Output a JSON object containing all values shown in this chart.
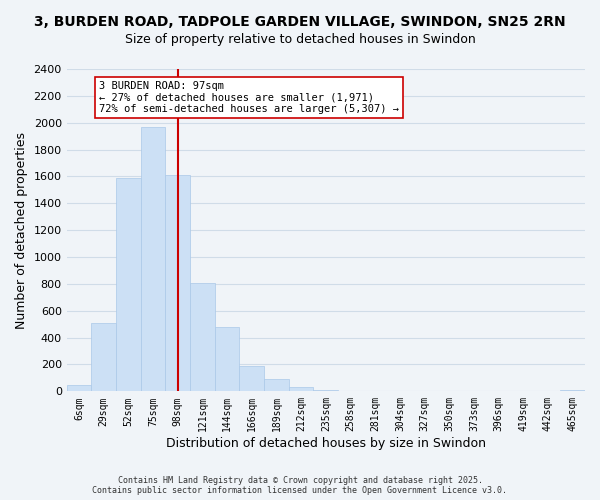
{
  "title": "3, BURDEN ROAD, TADPOLE GARDEN VILLAGE, SWINDON, SN25 2RN",
  "subtitle": "Size of property relative to detached houses in Swindon",
  "xlabel": "Distribution of detached houses by size in Swindon",
  "ylabel": "Number of detached properties",
  "bin_labels": [
    "6sqm",
    "29sqm",
    "52sqm",
    "75sqm",
    "98sqm",
    "121sqm",
    "144sqm",
    "166sqm",
    "189sqm",
    "212sqm",
    "235sqm",
    "258sqm",
    "281sqm",
    "304sqm",
    "327sqm",
    "350sqm",
    "373sqm",
    "396sqm",
    "419sqm",
    "442sqm",
    "465sqm"
  ],
  "bar_values": [
    50,
    510,
    1590,
    1970,
    1610,
    810,
    480,
    190,
    90,
    35,
    10,
    5,
    2,
    1,
    0,
    0,
    0,
    0,
    0,
    0,
    10
  ],
  "bar_color": "#cce0f5",
  "bar_edge_color": "#aac8e8",
  "vline_x": 4,
  "vline_color": "#cc0000",
  "annotation_title": "3 BURDEN ROAD: 97sqm",
  "annotation_line1": "← 27% of detached houses are smaller (1,971)",
  "annotation_line2": "72% of semi-detached houses are larger (5,307) →",
  "annotation_box_color": "#ffffff",
  "annotation_box_edge": "#cc0000",
  "ylim": [
    0,
    2400
  ],
  "yticks": [
    0,
    200,
    400,
    600,
    800,
    1000,
    1200,
    1400,
    1600,
    1800,
    2000,
    2200,
    2400
  ],
  "footer1": "Contains HM Land Registry data © Crown copyright and database right 2025.",
  "footer2": "Contains public sector information licensed under the Open Government Licence v3.0.",
  "background_color": "#f0f4f8",
  "grid_color": "#d0dce8",
  "title_fontsize": 10,
  "subtitle_fontsize": 9
}
